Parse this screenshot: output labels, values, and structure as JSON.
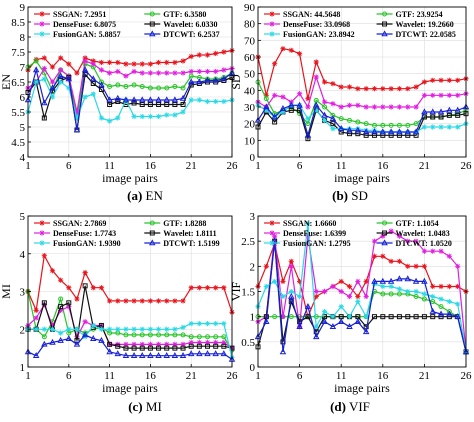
{
  "charts": [
    {
      "id": "a",
      "type": "line",
      "caption_letter": "(a)",
      "caption_text": "EN",
      "xlabel": "image pairs",
      "ylabel": "EN",
      "xlim": [
        1,
        26
      ],
      "ylim": [
        4,
        9
      ],
      "xticks": [
        1,
        6,
        11,
        16,
        21,
        26
      ],
      "yticks": [
        4,
        4.5,
        5,
        5.5,
        6,
        6.5,
        7,
        7.5,
        8,
        8.5,
        9
      ],
      "grid": true,
      "legend_placement": "top",
      "series": [
        {
          "name": "SSGAN: 7.2951",
          "color": "#e8131b",
          "marker": "star",
          "values": [
            6.9,
            7.25,
            7.3,
            7.0,
            7.3,
            7.1,
            6.8,
            7.3,
            7.2,
            7.15,
            7.15,
            7.15,
            7.1,
            7.1,
            7.1,
            7.1,
            7.15,
            7.15,
            7.15,
            7.2,
            7.35,
            7.4,
            7.4,
            7.45,
            7.5,
            7.55
          ]
        },
        {
          "name": "GTF: 6.3580",
          "color": "#27c427",
          "marker": "circle",
          "values": [
            7.0,
            7.2,
            6.8,
            6.2,
            6.9,
            6.7,
            5.3,
            7.1,
            7.0,
            6.5,
            6.35,
            6.4,
            6.35,
            6.4,
            6.35,
            6.3,
            6.3,
            6.3,
            6.35,
            6.3,
            6.7,
            6.65,
            6.6,
            6.6,
            6.65,
            6.8
          ]
        },
        {
          "name": "DenseFuse: 6.8075",
          "color": "#e01ee0",
          "marker": "star",
          "values": [
            6.3,
            6.5,
            6.95,
            6.5,
            6.9,
            6.7,
            5.5,
            7.2,
            7.1,
            6.9,
            6.8,
            6.85,
            6.7,
            6.85,
            6.8,
            6.8,
            6.8,
            6.8,
            6.8,
            6.8,
            6.85,
            6.85,
            6.85,
            6.85,
            6.9,
            6.95
          ]
        },
        {
          "name": "Wavelet: 6.0330",
          "color": "#111111",
          "marker": "square",
          "values": [
            6.15,
            6.5,
            5.3,
            6.2,
            6.55,
            6.65,
            4.9,
            6.75,
            6.45,
            6.25,
            5.75,
            5.85,
            5.75,
            5.8,
            5.75,
            5.75,
            5.75,
            5.75,
            5.75,
            5.75,
            6.4,
            6.45,
            6.5,
            6.5,
            6.55,
            6.65
          ]
        },
        {
          "name": "FusionGAN: 5.8857",
          "color": "#2ad9e6",
          "marker": "star",
          "values": [
            5.5,
            6.5,
            6.6,
            6.0,
            6.5,
            6.3,
            5.3,
            6.0,
            6.1,
            5.3,
            5.2,
            5.3,
            5.9,
            5.35,
            5.35,
            5.35,
            5.35,
            5.4,
            5.4,
            5.5,
            5.9,
            5.9,
            5.85,
            5.85,
            5.85,
            5.9
          ]
        },
        {
          "name": "DTCWT: 6.2537",
          "color": "#1620d6",
          "marker": "triangle",
          "values": [
            5.9,
            6.9,
            5.8,
            6.3,
            6.7,
            6.6,
            4.9,
            6.9,
            6.6,
            6.4,
            5.9,
            5.95,
            5.9,
            5.9,
            5.9,
            5.9,
            5.9,
            5.9,
            5.9,
            5.95,
            6.5,
            6.5,
            6.55,
            6.55,
            6.6,
            6.8
          ]
        }
      ]
    },
    {
      "id": "b",
      "type": "line",
      "caption_letter": "(b)",
      "caption_text": "SD",
      "xlabel": "image pairs",
      "ylabel": "SD",
      "xlim": [
        1,
        26
      ],
      "ylim": [
        0,
        90
      ],
      "xticks": [
        1,
        6,
        11,
        16,
        21,
        26
      ],
      "yticks": [
        0,
        10,
        20,
        30,
        40,
        50,
        60,
        70,
        80,
        90
      ],
      "grid": true,
      "legend_placement": "top",
      "series": [
        {
          "name": "SSGAN: 44.5648",
          "color": "#e8131b",
          "marker": "star",
          "values": [
            60,
            37,
            56,
            65,
            64,
            62,
            35,
            57,
            45,
            44,
            42,
            42,
            41,
            41,
            41,
            41,
            41,
            41,
            41,
            42,
            45,
            46,
            46,
            46,
            46,
            47
          ]
        },
        {
          "name": "GTF: 23.9254",
          "color": "#27c427",
          "marker": "circle",
          "values": [
            45,
            35,
            26,
            28,
            30,
            26,
            20,
            34,
            30,
            25,
            23,
            22,
            21,
            20,
            19,
            19,
            19,
            19,
            19,
            20,
            24,
            24,
            24,
            25,
            26,
            28
          ]
        },
        {
          "name": "DenseFuse: 33.0968",
          "color": "#e01ee0",
          "marker": "star",
          "values": [
            33,
            30,
            37,
            36,
            33,
            38,
            30,
            48,
            33,
            32,
            30,
            31,
            31,
            30,
            30,
            30,
            30,
            30,
            30,
            30,
            37,
            37,
            37,
            37,
            37,
            38
          ]
        },
        {
          "name": "Wavelet: 19.2660",
          "color": "#111111",
          "marker": "square",
          "values": [
            18,
            27,
            21,
            27,
            28,
            28,
            11,
            28,
            22,
            20,
            15,
            14,
            14,
            13,
            13,
            13,
            13,
            13,
            13,
            13,
            24,
            24,
            24,
            25,
            25,
            26
          ]
        },
        {
          "name": "FusionGAN: 23.8942",
          "color": "#2ad9e6",
          "marker": "star",
          "values": [
            31,
            28,
            24,
            27,
            31,
            31,
            23,
            28,
            22,
            17,
            17,
            17,
            17,
            16,
            16,
            15,
            15,
            15,
            15,
            15,
            18,
            18,
            18,
            18,
            18,
            20
          ]
        },
        {
          "name": "DTCWT: 22.0585",
          "color": "#1620d6",
          "marker": "triangle",
          "values": [
            22,
            30,
            24,
            29,
            31,
            31,
            13,
            31,
            25,
            23,
            17,
            16,
            16,
            15,
            15,
            15,
            15,
            15,
            15,
            15,
            27,
            27,
            27,
            28,
            28,
            30
          ]
        }
      ]
    },
    {
      "id": "c",
      "type": "line",
      "caption_letter": "(c)",
      "caption_text": "MI",
      "xlabel": "image pairs",
      "ylabel": "MI",
      "xlim": [
        1,
        26
      ],
      "ylim": [
        1,
        5
      ],
      "xticks": [
        1,
        6,
        11,
        16,
        21,
        26
      ],
      "yticks": [
        1,
        2,
        3,
        4,
        5
      ],
      "grid": true,
      "legend_placement": "top",
      "series": [
        {
          "name": "SSGAN: 2.7869",
          "color": "#e8131b",
          "marker": "star",
          "values": [
            3.0,
            2.5,
            3.95,
            3.55,
            3.3,
            3.1,
            2.8,
            3.5,
            3.1,
            3.1,
            2.75,
            2.75,
            2.75,
            2.75,
            2.75,
            2.75,
            2.75,
            2.75,
            2.75,
            2.75,
            3.1,
            3.1,
            3.1,
            3.1,
            3.1,
            2.45
          ]
        },
        {
          "name": "GTF: 1.8288",
          "color": "#27c427",
          "marker": "circle",
          "values": [
            3.0,
            2.0,
            1.8,
            2.2,
            2.8,
            1.9,
            2.0,
            1.9,
            2.0,
            2.05,
            1.9,
            1.9,
            1.85,
            1.85,
            1.85,
            1.85,
            1.85,
            1.85,
            1.85,
            1.85,
            1.8,
            1.8,
            1.8,
            1.8,
            1.8,
            1.45
          ]
        },
        {
          "name": "DenseFuse: 1.7743",
          "color": "#e01ee0",
          "marker": "star",
          "values": [
            2.1,
            2.3,
            2.65,
            2.1,
            2.5,
            2.6,
            1.8,
            2.2,
            2.1,
            2.1,
            1.6,
            1.6,
            1.6,
            1.6,
            1.6,
            1.6,
            1.6,
            1.6,
            1.6,
            1.6,
            1.65,
            1.65,
            1.65,
            1.65,
            1.65,
            1.5
          ]
        },
        {
          "name": "Wavelet: 1.8111",
          "color": "#111111",
          "marker": "square",
          "values": [
            2.0,
            2.0,
            2.7,
            2.0,
            2.6,
            2.7,
            1.7,
            3.15,
            2.05,
            2.1,
            1.6,
            1.55,
            1.5,
            1.5,
            1.5,
            1.5,
            1.5,
            1.5,
            1.5,
            1.5,
            1.55,
            1.55,
            1.55,
            1.55,
            1.55,
            1.5
          ]
        },
        {
          "name": "FusionGAN: 1.9390",
          "color": "#2ad9e6",
          "marker": "star",
          "values": [
            2.0,
            2.0,
            2.0,
            2.0,
            1.9,
            2.0,
            2.0,
            1.8,
            2.1,
            2.0,
            2.0,
            2.0,
            2.0,
            2.0,
            2.0,
            2.0,
            2.0,
            2.0,
            2.0,
            2.05,
            2.15,
            2.15,
            2.15,
            2.15,
            2.15,
            1.25
          ]
        },
        {
          "name": "DTCWT: 1.5199",
          "color": "#1620d6",
          "marker": "triangle",
          "values": [
            1.4,
            1.3,
            1.6,
            1.65,
            1.7,
            1.75,
            1.6,
            1.85,
            1.75,
            1.7,
            1.4,
            1.35,
            1.3,
            1.3,
            1.3,
            1.3,
            1.3,
            1.3,
            1.3,
            1.3,
            1.35,
            1.35,
            1.35,
            1.35,
            1.35,
            1.2
          ]
        }
      ]
    },
    {
      "id": "d",
      "type": "line",
      "caption_letter": "(d)",
      "caption_text": "VIF",
      "xlabel": "image pairs",
      "ylabel": "VIF",
      "xlim": [
        1,
        26
      ],
      "ylim": [
        0,
        3
      ],
      "xticks": [
        1,
        6,
        11,
        16,
        21,
        26
      ],
      "yticks": [
        0,
        0.5,
        1,
        1.5,
        2,
        2.5,
        3
      ],
      "grid": true,
      "legend_placement": "top",
      "series": [
        {
          "name": "SSGAN: 1.6660",
          "color": "#e8131b",
          "marker": "star",
          "values": [
            1.6,
            2.0,
            2.45,
            1.7,
            2.1,
            1.7,
            1.0,
            1.4,
            1.5,
            1.6,
            1.7,
            1.6,
            1.4,
            1.7,
            2.2,
            2.2,
            2.1,
            2.1,
            2.0,
            2.0,
            2.0,
            1.6,
            1.6,
            1.6,
            1.6,
            1.5
          ]
        },
        {
          "name": "GTF: 1.1054",
          "color": "#27c427",
          "marker": "circle",
          "values": [
            1.0,
            1.0,
            1.0,
            1.0,
            1.0,
            1.0,
            1.0,
            1.0,
            1.0,
            1.0,
            1.0,
            1.0,
            1.0,
            1.0,
            1.5,
            1.45,
            1.45,
            1.45,
            1.45,
            1.4,
            1.35,
            1.3,
            1.2,
            1.1,
            1.0,
            0.3
          ]
        },
        {
          "name": "DenseFuse: 1.6399",
          "color": "#e01ee0",
          "marker": "star",
          "values": [
            0.9,
            1.0,
            2.6,
            1.0,
            2.0,
            0.8,
            2.6,
            1.5,
            1.5,
            1.6,
            1.5,
            1.4,
            1.7,
            1.4,
            2.5,
            2.6,
            2.7,
            2.6,
            2.5,
            2.5,
            2.3,
            2.3,
            2.3,
            2.2,
            2.0,
            0.3
          ]
        },
        {
          "name": "Wavelet: 1.0483",
          "color": "#111111",
          "marker": "square",
          "values": [
            0.4,
            1.0,
            2.5,
            0.5,
            1.3,
            0.9,
            1.0,
            0.7,
            1.0,
            1.0,
            1.0,
            1.0,
            1.0,
            0.8,
            1.0,
            1.0,
            1.0,
            1.0,
            1.0,
            1.0,
            1.0,
            1.0,
            1.0,
            1.0,
            1.0,
            0.3
          ]
        },
        {
          "name": "FusionGAN: 1.2795",
          "color": "#2ad9e6",
          "marker": "star",
          "values": [
            1.2,
            1.6,
            1.7,
            1.4,
            1.5,
            1.4,
            2.85,
            0.8,
            1.1,
            1.0,
            1.2,
            1.0,
            1.3,
            1.0,
            1.65,
            1.6,
            1.6,
            1.55,
            1.5,
            1.5,
            1.45,
            1.4,
            1.35,
            1.3,
            1.25,
            0.3
          ]
        },
        {
          "name": "DTCWT: 1.0520",
          "color": "#1620d6",
          "marker": "triangle",
          "values": [
            0.6,
            0.9,
            2.5,
            0.3,
            1.4,
            0.8,
            1.2,
            0.6,
            0.9,
            0.8,
            0.9,
            0.8,
            0.9,
            0.7,
            1.7,
            1.7,
            1.7,
            1.75,
            1.75,
            1.7,
            1.7,
            1.1,
            1.05,
            1.05,
            1.0,
            0.3
          ]
        }
      ]
    }
  ]
}
